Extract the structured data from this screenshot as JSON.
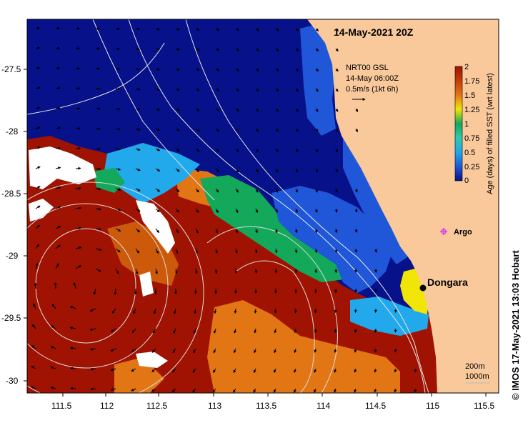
{
  "map": {
    "title": "14-May-2021 20Z",
    "model": {
      "line1": "NRT00 GSL",
      "line2": "14-May 06:00Z",
      "line3": "0.5m/s (1kt 6h)"
    },
    "place": "Dongara",
    "argo_label": "Argo",
    "contours": {
      "line1": "200m",
      "line2": "1000m"
    },
    "credit": "© IMOS 17-May-2021 13:03 Hobart",
    "x_axis": {
      "ticks": [
        "111.5",
        "112",
        "112.5",
        "113",
        "113.5",
        "114",
        "114.5",
        "115",
        "115.5"
      ]
    },
    "y_axis": {
      "ticks": [
        "-27.5",
        "-28",
        "-28.5",
        "-29",
        "-29.5",
        "-30"
      ]
    },
    "colors": {
      "land": "#f9c89b",
      "deep_blue": "#07118a",
      "blue": "#1f57d8",
      "light_blue": "#21a9ec",
      "green": "#13a85a",
      "orange": "#e27614",
      "dark_red": "#a01302",
      "yellow": "#f1e507",
      "argo": "#e040e0"
    }
  },
  "colorbar": {
    "title": "Age (days) of filled SST (wrt latest)",
    "ticks": [
      "2",
      "1.75",
      "1.5",
      "1.25",
      "1",
      "0.75",
      "0.5",
      "0.25",
      "0"
    ]
  }
}
